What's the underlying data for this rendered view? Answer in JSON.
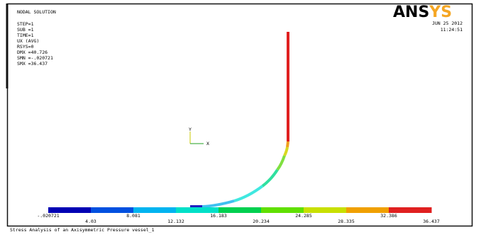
{
  "header": {
    "title": "NODAL SOLUTION",
    "logo_a": "ANS",
    "logo_b": "YS",
    "date": "JUN 25 2012",
    "time": "11:24:51"
  },
  "status": [
    "STEP=1",
    "SUB =1",
    "TIME=1",
    "UX       (AVG)",
    "RSYS=0",
    "DMX =40.726",
    "SMN =-.020721",
    "SMX =36.437"
  ],
  "triad": {
    "x_label": "X",
    "y_label": "Y"
  },
  "legend": {
    "labels": [
      "-.020721",
      "4.03",
      "8.081",
      "12.132",
      "16.183",
      "20.234",
      "24.285",
      "28.335",
      "32.386",
      "36.437"
    ]
  },
  "caption": "Stress Analysis of an Axisymmetric Pressure vessel_1"
}
